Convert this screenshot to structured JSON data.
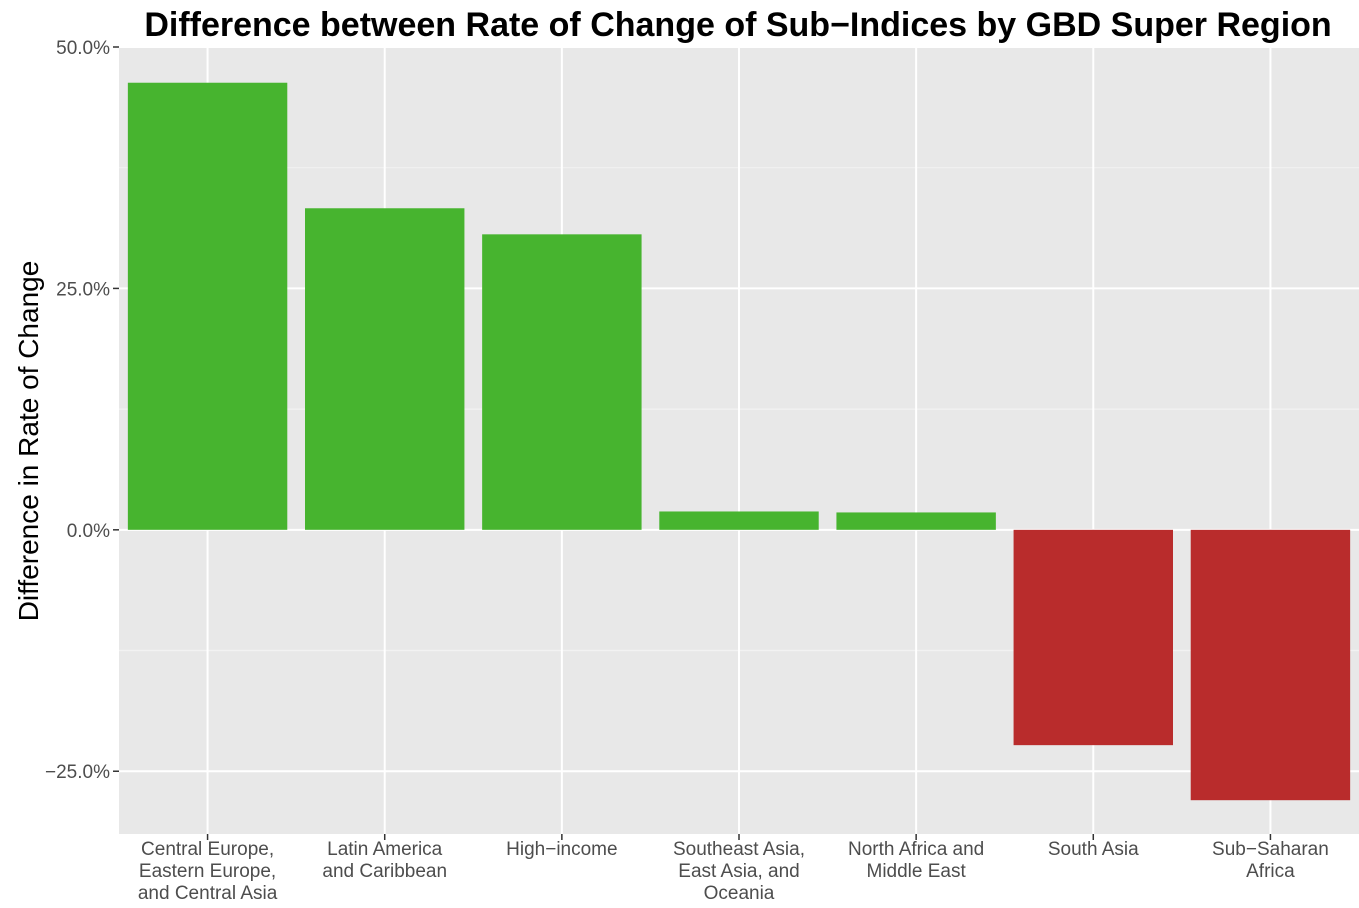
{
  "chart_data": {
    "type": "bar",
    "title": "Difference between Rate of Change of Sub−Indices by GBD Super Region",
    "xlabel": "",
    "ylabel": "Difference in Rate of Change",
    "categories": [
      [
        "Central Europe,",
        "Eastern Europe,",
        "and Central Asia"
      ],
      [
        "Latin America",
        "and Caribbean"
      ],
      [
        "High−income"
      ],
      [
        "Southeast Asia,",
        "East Asia, and",
        "Oceania"
      ],
      [
        "North Africa and",
        "Middle East"
      ],
      [
        "South Asia"
      ],
      [
        "Sub−Saharan",
        "Africa"
      ]
    ],
    "values": [
      46.3,
      33.3,
      30.6,
      1.9,
      1.8,
      -22.3,
      -28.0
    ],
    "ylim": [
      -31.5,
      50.0
    ],
    "yticks": [
      50,
      25,
      0,
      -25
    ],
    "ytick_labels": [
      "50.0%",
      "25.0%",
      "0.0%",
      "−25.0%"
    ],
    "grid": true,
    "colors": {
      "positive": "#47b42f",
      "negative": "#b92c2c",
      "panel": "#e8e8e8",
      "grid_major": "#ffffff",
      "text": "#4d4d4d",
      "title": "#000000"
    }
  }
}
